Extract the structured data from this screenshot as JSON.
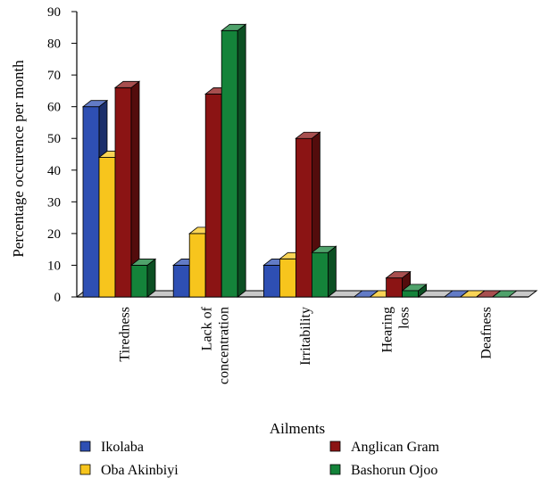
{
  "chart_data": {
    "type": "bar",
    "title": "",
    "xlabel": "Ailments",
    "ylabel": "Percentage occurence per month",
    "ylim": [
      0,
      90
    ],
    "yticks": [
      0,
      10,
      20,
      30,
      40,
      50,
      60,
      70,
      80,
      90
    ],
    "categories": [
      [
        "Tiredness"
      ],
      [
        "Lack of",
        "concentration"
      ],
      [
        "Irritability"
      ],
      [
        "Hearing",
        "loss"
      ],
      [
        "Deafness"
      ]
    ],
    "series": [
      {
        "name": "Ikolaba",
        "color": "#2e4fb3",
        "values": [
          60,
          10,
          10,
          0,
          0
        ]
      },
      {
        "name": "Oba Akinbiyi",
        "color": "#f7c51d",
        "values": [
          44,
          20,
          12,
          0,
          0
        ]
      },
      {
        "name": "Anglican Gram",
        "color": "#8b1414",
        "values": [
          66,
          64,
          50,
          6,
          0
        ]
      },
      {
        "name": "Bashorun Ojoo",
        "color": "#14833a",
        "values": [
          10,
          84,
          14,
          2,
          0
        ]
      }
    ],
    "legend": {
      "placement": "bottom",
      "order": [
        "Ikolaba",
        "Anglican Gram",
        "Oba Akinbiyi",
        "Bashorun Ojoo"
      ]
    },
    "grid": false
  }
}
